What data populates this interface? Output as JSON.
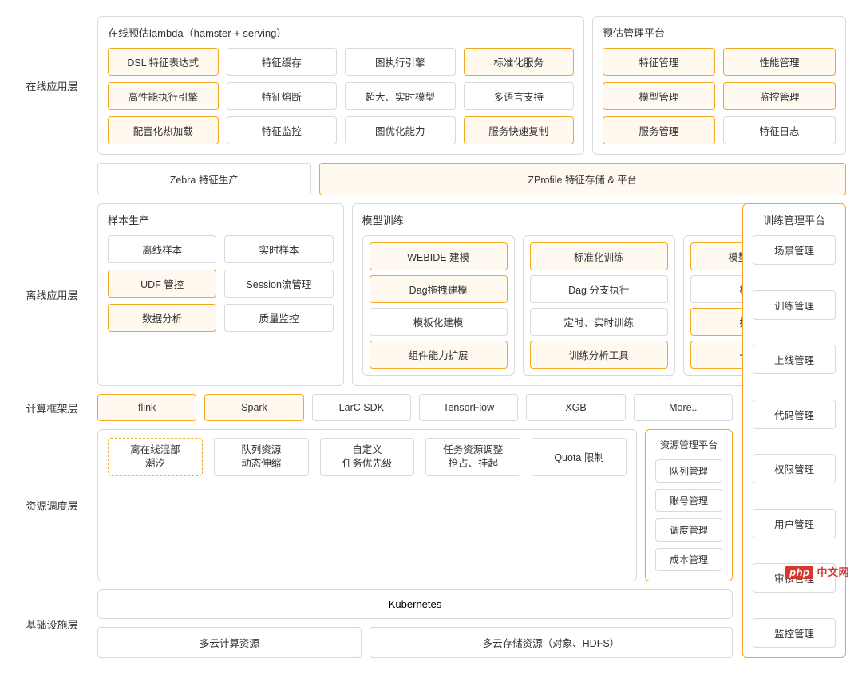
{
  "colors": {
    "panel_border": "#d9d9d9",
    "panel_bg": "#ffffff",
    "cell_gray_border": "#d9d9d9",
    "cell_gray_bg": "#ffffff",
    "cell_orange_border": "#f5a623",
    "cell_orange_bg": "#fff9f0",
    "cell_dashed_border": "#f5a623",
    "cell_dashed_bg": "#ffffff"
  },
  "layers": {
    "online_app": "在线应用层",
    "offline_app": "离线应用层",
    "compute": "计算框架层",
    "resource": "资源调度层",
    "infra": "基础设施层"
  },
  "online": {
    "lambda": {
      "title": "在线预估lambda（hamster + serving）",
      "cols": [
        [
          "DSL 特征表达式",
          "高性能执行引擎",
          "配置化热加载"
        ],
        [
          "特征缓存",
          "特征熔断",
          "特征监控"
        ],
        [
          "图执行引擎",
          "超大、实时模型",
          "图优化能力"
        ],
        [
          "标准化服务",
          "多语言支持",
          "服务快速复制"
        ]
      ],
      "orange": [
        [
          0,
          0
        ],
        [
          0,
          1
        ],
        [
          0,
          2
        ],
        [
          3,
          0
        ],
        [
          3,
          2
        ]
      ]
    },
    "mgmt": {
      "title": "预估管理平台",
      "cols": [
        [
          "特征管理",
          "模型管理",
          "服务管理"
        ],
        [
          "性能管理",
          "监控管理",
          "特征日志"
        ]
      ],
      "orange": [
        [
          0,
          0
        ],
        [
          0,
          1
        ],
        [
          0,
          2
        ],
        [
          1,
          0
        ],
        [
          1,
          1
        ]
      ]
    }
  },
  "middle": {
    "zebra": "Zebra 特征生产",
    "zprofile": "ZProfile 特征存储 & 平台"
  },
  "offline": {
    "sample": {
      "title": "样本生产",
      "cols": [
        [
          "离线样本",
          "UDF 管控",
          "数据分析"
        ],
        [
          "实时样本",
          "Session流管理",
          "质量监控"
        ]
      ],
      "orange": [
        [
          0,
          1
        ],
        [
          0,
          2
        ]
      ]
    },
    "train": {
      "title": "模型训练",
      "groups": [
        {
          "items": [
            "WEBIDE 建模",
            "Dag拖拽建模",
            "模板化建模",
            "组件能力扩展"
          ],
          "orange": [
            0,
            1,
            3
          ]
        },
        {
          "items": [
            "标准化训练",
            "Dag 分支执行",
            "定时、实时训练",
            "训练分析工具"
          ],
          "orange": [
            0,
            3
          ]
        },
        {
          "items": [
            "模型导出/转换",
            "模型优化",
            "指标效验",
            "一键上线"
          ],
          "orange": [
            0,
            2,
            3
          ]
        }
      ]
    },
    "train_mgmt": {
      "title": "训练管理平台",
      "items": [
        "场景管理",
        "训练管理",
        "上线管理",
        "代码管理",
        "权限管理",
        "用户管理",
        "审核管理",
        "监控管理"
      ]
    }
  },
  "compute": {
    "items": [
      "flink",
      "Spark",
      "LarC SDK",
      "TensorFlow",
      "XGB",
      "More.."
    ],
    "orange": [
      0,
      1
    ]
  },
  "resource": {
    "main": {
      "items": [
        "离在线混部\n潮汐",
        "队列资源\n动态伸缩",
        "自定义\n任务优先级",
        "任务资源调整\n抢占、挂起",
        "Quota 限制"
      ],
      "dashed": [
        0
      ]
    },
    "mgmt": {
      "title": "资源管理平台",
      "items": [
        "队列管理",
        "账号管理",
        "调度管理",
        "成本管理"
      ]
    }
  },
  "infra": {
    "k8s": "Kubernetes",
    "compute_cloud": "多云计算资源",
    "storage_cloud": "多云存储资源（对象、HDFS）"
  },
  "watermark": "中文网"
}
